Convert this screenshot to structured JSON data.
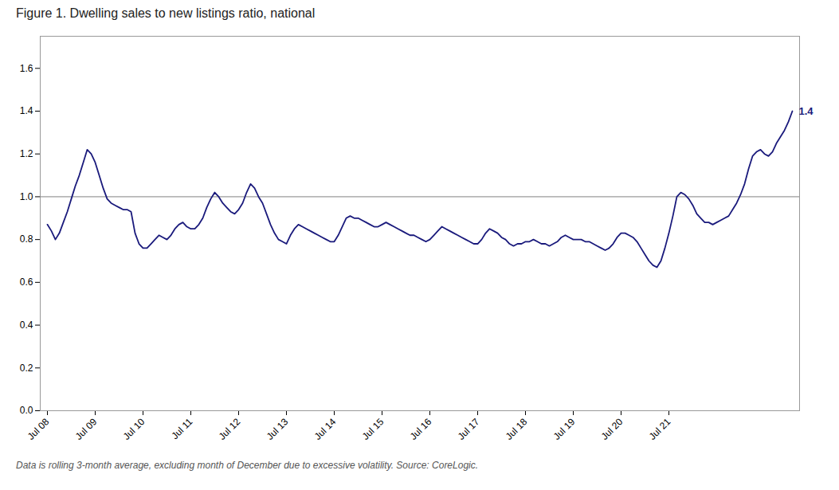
{
  "chart_data": {
    "type": "line",
    "title": "Figure 1. Dwelling sales to new listings ratio, national",
    "footnote": "Data is rolling 3-month average, excluding month of December due to excessive volatility. Source: CoreLogic.",
    "color": "#1a1a7c",
    "reference_line": {
      "value": 1.0,
      "color": "#808080"
    },
    "annotation": "1.4",
    "annotation_color": "#1a1a7c",
    "ylim": [
      0.0,
      1.75
    ],
    "yticks": [
      {
        "value": 0.0,
        "label": "0.0"
      },
      0.2,
      0.4,
      0.6,
      0.8,
      {
        "value": 1.0,
        "label": "1.0"
      },
      1.2,
      1.4,
      1.6
    ],
    "grid": false,
    "categories": [
      "Jul 08",
      null,
      null,
      null,
      null,
      null,
      null,
      null,
      null,
      null,
      null,
      null,
      "Jul 09",
      null,
      null,
      null,
      null,
      null,
      null,
      null,
      null,
      null,
      null,
      null,
      "Jul 10",
      null,
      null,
      null,
      null,
      null,
      null,
      null,
      null,
      null,
      null,
      null,
      "Jul 11",
      null,
      null,
      null,
      null,
      null,
      null,
      null,
      null,
      null,
      null,
      null,
      "Jul 12",
      null,
      null,
      null,
      null,
      null,
      null,
      null,
      null,
      null,
      null,
      null,
      "Jul 13",
      null,
      null,
      null,
      null,
      null,
      null,
      null,
      null,
      null,
      null,
      null,
      "Jul 14",
      null,
      null,
      null,
      null,
      null,
      null,
      null,
      null,
      null,
      null,
      null,
      "Jul 15",
      null,
      null,
      null,
      null,
      null,
      null,
      null,
      null,
      null,
      null,
      null,
      "Jul 16",
      null,
      null,
      null,
      null,
      null,
      null,
      null,
      null,
      null,
      null,
      null,
      "Jul 17",
      null,
      null,
      null,
      null,
      null,
      null,
      null,
      null,
      null,
      null,
      null,
      "Jul 18",
      null,
      null,
      null,
      null,
      null,
      null,
      null,
      null,
      null,
      null,
      null,
      "Jul 19",
      null,
      null,
      null,
      null,
      null,
      null,
      null,
      null,
      null,
      null,
      null,
      "Jul 20",
      null,
      null,
      null,
      null,
      null,
      null,
      null,
      null,
      null,
      null,
      null,
      "Jul 21",
      null,
      null,
      null,
      null,
      null,
      null,
      null,
      null,
      null,
      null,
      null,
      null,
      null,
      null,
      null,
      null,
      null,
      null,
      null,
      null,
      null,
      null,
      null,
      null,
      null,
      null,
      null,
      null,
      null,
      null,
      null
    ],
    "values": [
      0.87,
      0.84,
      0.8,
      0.83,
      0.88,
      0.93,
      0.99,
      1.05,
      1.1,
      1.16,
      1.22,
      1.2,
      1.16,
      1.1,
      1.04,
      0.99,
      0.97,
      0.96,
      0.95,
      0.94,
      0.94,
      0.93,
      0.83,
      0.78,
      0.76,
      0.76,
      0.78,
      0.8,
      0.82,
      0.81,
      0.8,
      0.82,
      0.85,
      0.87,
      0.88,
      0.86,
      0.85,
      0.85,
      0.87,
      0.9,
      0.95,
      0.99,
      1.02,
      1.0,
      0.97,
      0.95,
      0.93,
      0.92,
      0.94,
      0.97,
      1.02,
      1.06,
      1.04,
      1.0,
      0.97,
      0.92,
      0.87,
      0.83,
      0.8,
      0.79,
      0.78,
      0.82,
      0.85,
      0.87,
      0.86,
      0.85,
      0.84,
      0.83,
      0.82,
      0.81,
      0.8,
      0.79,
      0.79,
      0.82,
      0.86,
      0.9,
      0.91,
      0.9,
      0.9,
      0.89,
      0.88,
      0.87,
      0.86,
      0.86,
      0.87,
      0.88,
      0.87,
      0.86,
      0.85,
      0.84,
      0.83,
      0.82,
      0.82,
      0.81,
      0.8,
      0.79,
      0.8,
      0.82,
      0.84,
      0.86,
      0.85,
      0.84,
      0.83,
      0.82,
      0.81,
      0.8,
      0.79,
      0.78,
      0.78,
      0.8,
      0.83,
      0.85,
      0.84,
      0.83,
      0.81,
      0.8,
      0.78,
      0.77,
      0.78,
      0.78,
      0.79,
      0.79,
      0.8,
      0.79,
      0.78,
      0.78,
      0.77,
      0.78,
      0.79,
      0.81,
      0.82,
      0.81,
      0.8,
      0.8,
      0.8,
      0.79,
      0.79,
      0.78,
      0.77,
      0.76,
      0.75,
      0.76,
      0.78,
      0.81,
      0.83,
      0.83,
      0.82,
      0.81,
      0.79,
      0.76,
      0.73,
      0.7,
      0.68,
      0.67,
      0.7,
      0.76,
      0.83,
      0.91,
      1.0,
      1.02,
      1.01,
      0.99,
      0.96,
      0.92,
      0.9,
      0.88,
      0.88,
      0.87,
      0.88,
      0.89,
      0.9,
      0.91,
      0.94,
      0.97,
      1.01,
      1.06,
      1.13,
      1.19,
      1.21,
      1.22,
      1.2,
      1.19,
      1.21,
      1.25,
      1.28,
      1.31,
      1.35,
      1.4
    ]
  }
}
